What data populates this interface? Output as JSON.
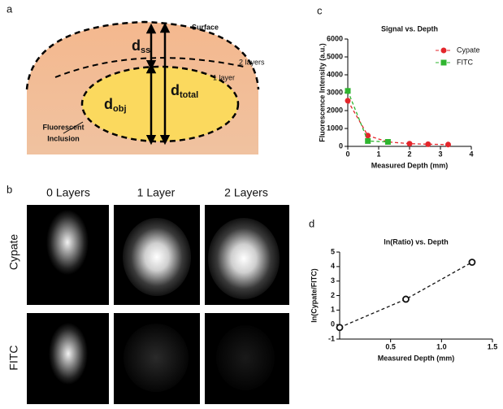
{
  "diagram": {
    "label": "a",
    "surface": "Surface",
    "layer2": "2 layers",
    "layer1": "1 layer",
    "inclusion": [
      "Fluorescent",
      "Inclusion"
    ],
    "d_ss": {
      "symbol": "d",
      "subscript": "ss"
    },
    "d_total": {
      "symbol": "d",
      "subscript": "total"
    },
    "d_obj": {
      "symbol": "d",
      "subscript": "obj"
    }
  },
  "images": {
    "label": "b",
    "columns": [
      "0 Layers",
      "1 Layer",
      "2 Layers"
    ],
    "rows": [
      "Cypate",
      "FITC"
    ]
  },
  "chart_data": [
    {
      "type": "scatter",
      "label": "c",
      "title": "Signal vs. Depth",
      "x_label": "Measured Depth (mm)",
      "y_label": "Fluorescence Intensity (a.u.)",
      "xlim": [
        0,
        4
      ],
      "xticks": [
        0,
        1,
        2,
        3,
        4
      ],
      "ylim": [
        0,
        6000
      ],
      "yticks": [
        0,
        1000,
        2000,
        3000,
        4000,
        5000,
        6000
      ],
      "line_style": "dashed",
      "legend": "top-right",
      "series": [
        {
          "name": "Cypate",
          "color": "#e3262b",
          "marker": "circle",
          "x": [
            0,
            0.65,
            1.3,
            2.0,
            2.6,
            3.25
          ],
          "values": [
            2550,
            600,
            250,
            150,
            120,
            100
          ]
        },
        {
          "name": "FITC",
          "color": "#2fb52f",
          "marker": "square",
          "x": [
            0,
            0.65,
            1.3
          ],
          "values": [
            3100,
            300,
            250
          ]
        }
      ]
    },
    {
      "type": "scatter",
      "label": "d",
      "title": "ln(Ratio) vs. Depth",
      "x_label": "Measured Depth (mm)",
      "y_label": "ln(Cypate/FITC)",
      "xlim": [
        0,
        1.5
      ],
      "xticks": [
        0.5,
        {
          "value": 1,
          "label": "1.0"
        },
        1.5
      ],
      "ylim": [
        -1,
        5
      ],
      "yticks": [
        -1,
        0,
        1,
        2,
        3,
        4,
        5
      ],
      "line_style": "dashed",
      "series": [
        {
          "color": "#111111",
          "marker": "open-circle",
          "x": [
            0,
            0.65,
            1.3
          ],
          "values": [
            -0.2,
            1.75,
            4.3
          ]
        }
      ]
    }
  ]
}
